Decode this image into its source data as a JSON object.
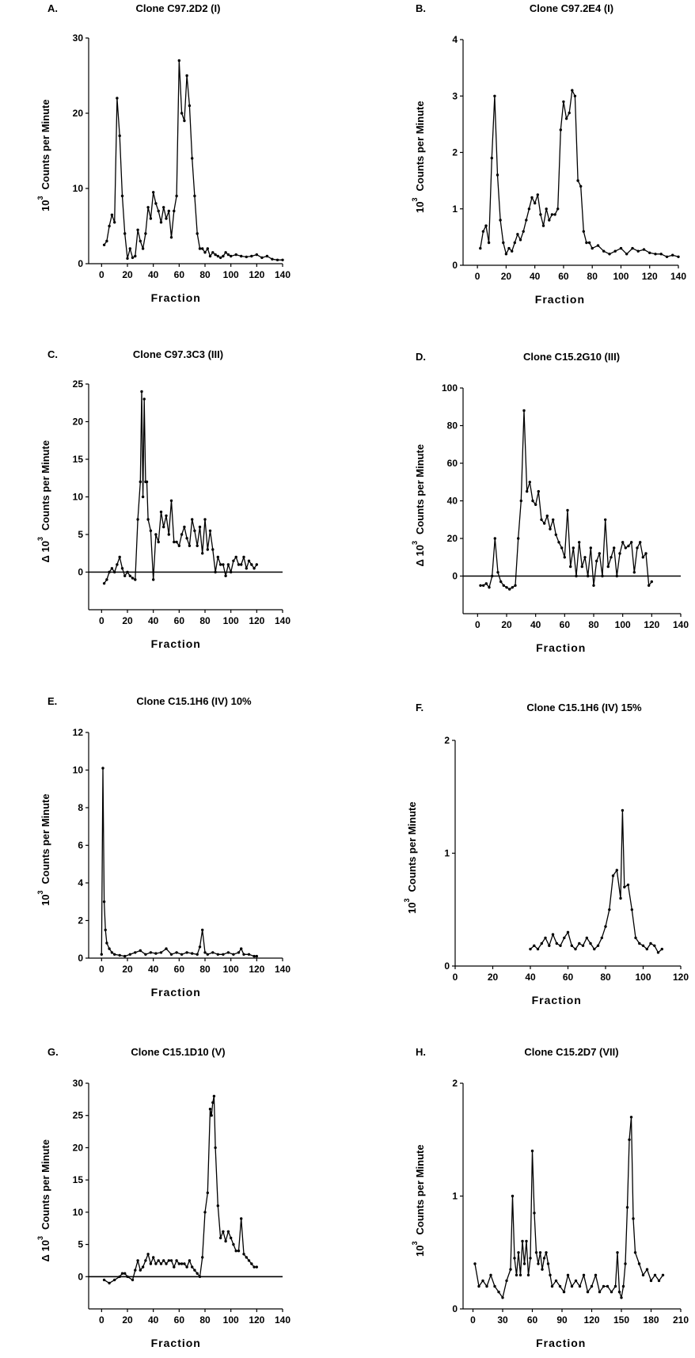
{
  "chart_data": [
    {
      "panel": "A.",
      "title": "Clone C97.2D2 (I)",
      "type": "line",
      "xlabel": "Fraction",
      "ylabel": "Counts per Minute",
      "ylabel_prefix": "10",
      "ylabel_exp": "3",
      "xlim": [
        -10,
        140
      ],
      "ylim": [
        0,
        30
      ],
      "xticks": [
        0,
        20,
        40,
        60,
        80,
        100,
        120,
        140
      ],
      "yticks": [
        0,
        10,
        20,
        30
      ],
      "baseline": false,
      "series": [
        {
          "x": [
            2,
            4,
            6,
            8,
            10,
            12,
            14,
            16,
            18,
            20,
            22,
            24,
            26,
            28,
            30,
            32,
            34,
            36,
            38,
            40,
            42,
            44,
            46,
            48,
            50,
            52,
            54,
            56,
            58,
            60,
            62,
            64,
            66,
            68,
            70,
            72,
            74,
            76,
            78,
            80,
            82,
            84,
            86,
            88,
            90,
            92,
            94,
            96,
            98,
            100,
            104,
            108,
            112,
            116,
            120,
            124,
            128,
            132,
            136,
            140
          ],
          "y": [
            2.5,
            3,
            5,
            6.5,
            5.5,
            22,
            17,
            9,
            4,
            0.7,
            2,
            0.8,
            1,
            4.5,
            3,
            2,
            4,
            7.5,
            6,
            9.5,
            8,
            7,
            5.5,
            7.5,
            6,
            7,
            3.5,
            7,
            9,
            27,
            20,
            19,
            25,
            21,
            14,
            9,
            4,
            2,
            2,
            1.5,
            2,
            1,
            1.5,
            1.2,
            1,
            0.8,
            1,
            1.5,
            1.2,
            1,
            1.2,
            1,
            0.9,
            1,
            1.2,
            0.8,
            1,
            0.6,
            0.5,
            0.5
          ]
        }
      ]
    },
    {
      "panel": "B.",
      "title": "Clone C97.2E4 (I)",
      "type": "line",
      "xlabel": "Fraction",
      "ylabel": "Counts per Minute",
      "ylabel_prefix": "10",
      "ylabel_exp": "3",
      "xlim": [
        -10,
        140
      ],
      "ylim": [
        0,
        4
      ],
      "xticks": [
        0,
        20,
        40,
        60,
        80,
        100,
        120,
        140
      ],
      "yticks": [
        0,
        1,
        2,
        3,
        4
      ],
      "baseline": false,
      "series": [
        {
          "x": [
            2,
            4,
            6,
            8,
            10,
            12,
            14,
            16,
            18,
            20,
            22,
            24,
            26,
            28,
            30,
            32,
            34,
            36,
            38,
            40,
            42,
            44,
            46,
            48,
            50,
            52,
            54,
            56,
            58,
            60,
            62,
            64,
            66,
            68,
            70,
            72,
            74,
            76,
            78,
            80,
            84,
            88,
            92,
            96,
            100,
            104,
            108,
            112,
            116,
            120,
            124,
            128,
            132,
            136,
            140
          ],
          "y": [
            0.3,
            0.6,
            0.7,
            0.4,
            1.9,
            3,
            1.6,
            0.8,
            0.4,
            0.2,
            0.3,
            0.25,
            0.4,
            0.55,
            0.45,
            0.6,
            0.8,
            1.0,
            1.2,
            1.1,
            1.25,
            0.9,
            0.7,
            1.0,
            0.8,
            0.9,
            0.9,
            1.0,
            2.4,
            2.9,
            2.6,
            2.7,
            3.1,
            3.0,
            1.5,
            1.4,
            0.6,
            0.4,
            0.4,
            0.3,
            0.35,
            0.25,
            0.2,
            0.25,
            0.3,
            0.2,
            0.3,
            0.25,
            0.28,
            0.22,
            0.2,
            0.2,
            0.15,
            0.18,
            0.15
          ]
        }
      ]
    },
    {
      "panel": "C.",
      "title": "Clone C97.3C3 (III)",
      "type": "line",
      "xlabel": "Fraction",
      "ylabel": "Counts per Minute",
      "ylabel_prefix": "Δ 10",
      "ylabel_exp": "3",
      "xlim": [
        -10,
        140
      ],
      "ylim": [
        -5,
        25
      ],
      "xticks": [
        0,
        20,
        40,
        60,
        80,
        100,
        120,
        140
      ],
      "yticks": [
        0,
        5,
        10,
        15,
        20,
        25
      ],
      "baseline": true,
      "series": [
        {
          "x": [
            2,
            4,
            6,
            8,
            10,
            12,
            14,
            16,
            18,
            20,
            22,
            24,
            26,
            28,
            30,
            31,
            32,
            33,
            34,
            35,
            36,
            38,
            40,
            42,
            44,
            46,
            48,
            50,
            52,
            54,
            56,
            58,
            60,
            62,
            64,
            66,
            68,
            70,
            72,
            74,
            76,
            78,
            80,
            82,
            84,
            86,
            88,
            90,
            92,
            94,
            96,
            98,
            100,
            102,
            104,
            106,
            108,
            110,
            112,
            114,
            116,
            118,
            120
          ],
          "y": [
            -1.5,
            -1,
            0,
            0.5,
            0,
            1,
            2,
            0.5,
            -0.5,
            0,
            -0.5,
            -0.8,
            -1,
            7,
            12,
            24,
            10,
            23,
            12,
            12,
            7,
            5.5,
            -1,
            5,
            4,
            8,
            6,
            7.5,
            5,
            9.5,
            4,
            4,
            3.5,
            5,
            6,
            4.5,
            3.5,
            7,
            5.5,
            3.5,
            6,
            2.5,
            7,
            3,
            5.5,
            3,
            0,
            2,
            1,
            1,
            -0.5,
            1,
            0,
            1.5,
            2,
            1,
            1,
            2,
            0.5,
            1.5,
            1,
            0.5,
            1
          ]
        }
      ]
    },
    {
      "panel": "D.",
      "title": "Clone C15.2G10 (III)",
      "type": "line",
      "xlabel": "Fraction",
      "ylabel": "Counts per Minute",
      "ylabel_prefix": "Δ 10",
      "ylabel_exp": "3",
      "xlim": [
        -10,
        140
      ],
      "ylim": [
        -20,
        100
      ],
      "xticks": [
        0,
        20,
        40,
        60,
        80,
        100,
        120,
        140
      ],
      "yticks": [
        0,
        20,
        40,
        60,
        80,
        100
      ],
      "baseline": true,
      "series": [
        {
          "x": [
            2,
            4,
            6,
            8,
            10,
            12,
            14,
            16,
            18,
            20,
            22,
            24,
            26,
            28,
            30,
            32,
            34,
            36,
            38,
            40,
            42,
            44,
            46,
            48,
            50,
            52,
            54,
            56,
            58,
            60,
            62,
            64,
            66,
            68,
            70,
            72,
            74,
            76,
            78,
            80,
            82,
            84,
            86,
            88,
            90,
            92,
            94,
            96,
            98,
            100,
            102,
            104,
            106,
            108,
            110,
            112,
            114,
            116,
            118,
            120
          ],
          "y": [
            -5,
            -5,
            -4,
            -6,
            0,
            20,
            2,
            -3,
            -5,
            -6,
            -7,
            -6,
            -5,
            20,
            40,
            88,
            45,
            50,
            40,
            38,
            45,
            30,
            28,
            32,
            25,
            30,
            22,
            18,
            15,
            10,
            35,
            5,
            15,
            0,
            18,
            5,
            10,
            0,
            15,
            -5,
            8,
            12,
            0,
            30,
            5,
            10,
            15,
            0,
            12,
            18,
            15,
            16,
            18,
            2,
            15,
            18,
            10,
            12,
            -5,
            -3
          ]
        }
      ]
    },
    {
      "panel": "E.",
      "title": "Clone C15.1H6 (IV) 10%",
      "type": "line",
      "xlabel": "Fraction",
      "ylabel": "Counts per Minute",
      "ylabel_prefix": "10",
      "ylabel_exp": "3",
      "xlim": [
        -10,
        140
      ],
      "ylim": [
        0,
        12
      ],
      "xticks": [
        0,
        20,
        40,
        60,
        80,
        100,
        120,
        140
      ],
      "yticks": [
        0,
        2,
        4,
        6,
        8,
        10,
        12
      ],
      "baseline": false,
      "series": [
        {
          "x": [
            0,
            1,
            2,
            3,
            4,
            6,
            8,
            10,
            14,
            18,
            22,
            26,
            30,
            34,
            38,
            42,
            46,
            50,
            54,
            58,
            62,
            66,
            70,
            74,
            76,
            78,
            80,
            82,
            86,
            90,
            94,
            98,
            102,
            106,
            108,
            110,
            114,
            118,
            120
          ],
          "y": [
            0.2,
            10.1,
            3,
            1.5,
            0.8,
            0.5,
            0.3,
            0.2,
            0.15,
            0.1,
            0.2,
            0.3,
            0.4,
            0.2,
            0.3,
            0.25,
            0.3,
            0.5,
            0.2,
            0.3,
            0.2,
            0.3,
            0.25,
            0.2,
            0.6,
            1.5,
            0.3,
            0.2,
            0.3,
            0.2,
            0.2,
            0.3,
            0.2,
            0.3,
            0.5,
            0.2,
            0.2,
            0.1,
            0.1
          ]
        }
      ]
    },
    {
      "panel": "F.",
      "title": "Clone C15.1H6 (IV) 15%",
      "type": "line",
      "xlabel": "Fraction",
      "ylabel": "Counts per Minute",
      "ylabel_prefix": "10",
      "ylabel_exp": "3",
      "xlim": [
        0,
        120
      ],
      "ylim": [
        0,
        2
      ],
      "xticks": [
        0,
        20,
        40,
        60,
        80,
        100,
        120
      ],
      "yticks": [
        0,
        1,
        2
      ],
      "baseline": false,
      "series": [
        {
          "x": [
            40,
            42,
            44,
            46,
            48,
            50,
            52,
            54,
            56,
            58,
            60,
            62,
            64,
            66,
            68,
            70,
            72,
            74,
            76,
            78,
            80,
            82,
            84,
            86,
            88,
            89,
            90,
            92,
            94,
            96,
            98,
            100,
            102,
            104,
            106,
            108,
            110
          ],
          "y": [
            0.15,
            0.18,
            0.15,
            0.2,
            0.25,
            0.18,
            0.28,
            0.2,
            0.18,
            0.25,
            0.3,
            0.18,
            0.15,
            0.2,
            0.18,
            0.25,
            0.2,
            0.15,
            0.18,
            0.25,
            0.35,
            0.5,
            0.8,
            0.85,
            0.6,
            1.38,
            0.7,
            0.72,
            0.5,
            0.25,
            0.2,
            0.18,
            0.15,
            0.2,
            0.18,
            0.12,
            0.15
          ]
        }
      ]
    },
    {
      "panel": "G.",
      "title": "Clone C15.1D10 (V)",
      "type": "line",
      "xlabel": "Fraction",
      "ylabel": "Counts per Minute",
      "ylabel_prefix": "Δ 10",
      "ylabel_exp": "3",
      "xlim": [
        -10,
        140
      ],
      "ylim": [
        -5,
        30
      ],
      "xticks": [
        0,
        20,
        40,
        60,
        80,
        100,
        120,
        140
      ],
      "yticks": [
        0,
        5,
        10,
        15,
        20,
        25,
        30
      ],
      "baseline": true,
      "series": [
        {
          "x": [
            2,
            6,
            10,
            14,
            16,
            18,
            20,
            24,
            26,
            28,
            30,
            32,
            34,
            36,
            38,
            40,
            42,
            44,
            46,
            48,
            50,
            52,
            54,
            56,
            58,
            60,
            62,
            64,
            66,
            68,
            70,
            72,
            74,
            76,
            78,
            80,
            82,
            84,
            85,
            86,
            87,
            88,
            90,
            92,
            94,
            96,
            98,
            100,
            102,
            104,
            106,
            108,
            110,
            112,
            114,
            116,
            118,
            120
          ],
          "y": [
            -0.5,
            -1,
            -0.5,
            0,
            0.5,
            0.5,
            0,
            -0.5,
            1,
            2.5,
            1,
            1.5,
            2.5,
            3.5,
            2,
            3,
            2,
            2.5,
            2,
            2.5,
            2,
            2.5,
            2.5,
            1.5,
            2.5,
            2,
            2,
            2,
            1.5,
            2.5,
            1.5,
            1,
            0.5,
            0,
            3,
            10,
            13,
            26,
            25,
            27,
            28,
            20,
            11,
            6,
            7,
            5.5,
            7,
            6,
            5,
            4,
            4,
            9,
            3.5,
            3,
            2.5,
            2,
            1.5,
            1.5
          ]
        }
      ]
    },
    {
      "panel": "H.",
      "title": "Clone C15.2D7 (VII)",
      "type": "line",
      "xlabel": "Fraction",
      "ylabel": "Counts per Minute",
      "ylabel_prefix": "10",
      "ylabel_exp": "3",
      "xlim": [
        -10,
        210
      ],
      "ylim": [
        0,
        2
      ],
      "xticks": [
        0,
        30,
        60,
        90,
        120,
        150,
        180,
        210
      ],
      "yticks": [
        0,
        1,
        2
      ],
      "baseline": false,
      "series": [
        {
          "x": [
            2,
            6,
            10,
            14,
            18,
            22,
            26,
            30,
            34,
            38,
            40,
            42,
            44,
            46,
            48,
            50,
            52,
            54,
            56,
            58,
            60,
            62,
            64,
            66,
            68,
            70,
            72,
            74,
            76,
            78,
            80,
            84,
            88,
            92,
            96,
            100,
            104,
            108,
            112,
            116,
            120,
            124,
            128,
            132,
            136,
            140,
            144,
            146,
            148,
            150,
            152,
            154,
            156,
            158,
            160,
            162,
            164,
            168,
            172,
            176,
            180,
            184,
            188,
            192
          ],
          "y": [
            0.4,
            0.2,
            0.25,
            0.2,
            0.3,
            0.2,
            0.15,
            0.1,
            0.25,
            0.35,
            1.0,
            0.45,
            0.3,
            0.5,
            0.3,
            0.6,
            0.4,
            0.6,
            0.3,
            0.45,
            1.4,
            0.85,
            0.5,
            0.4,
            0.5,
            0.35,
            0.45,
            0.5,
            0.4,
            0.3,
            0.2,
            0.25,
            0.2,
            0.15,
            0.3,
            0.2,
            0.25,
            0.2,
            0.3,
            0.15,
            0.2,
            0.3,
            0.15,
            0.2,
            0.2,
            0.15,
            0.2,
            0.5,
            0.15,
            0.1,
            0.2,
            0.4,
            0.9,
            1.5,
            1.7,
            0.8,
            0.5,
            0.4,
            0.3,
            0.35,
            0.25,
            0.3,
            0.25,
            0.3
          ]
        }
      ]
    }
  ]
}
